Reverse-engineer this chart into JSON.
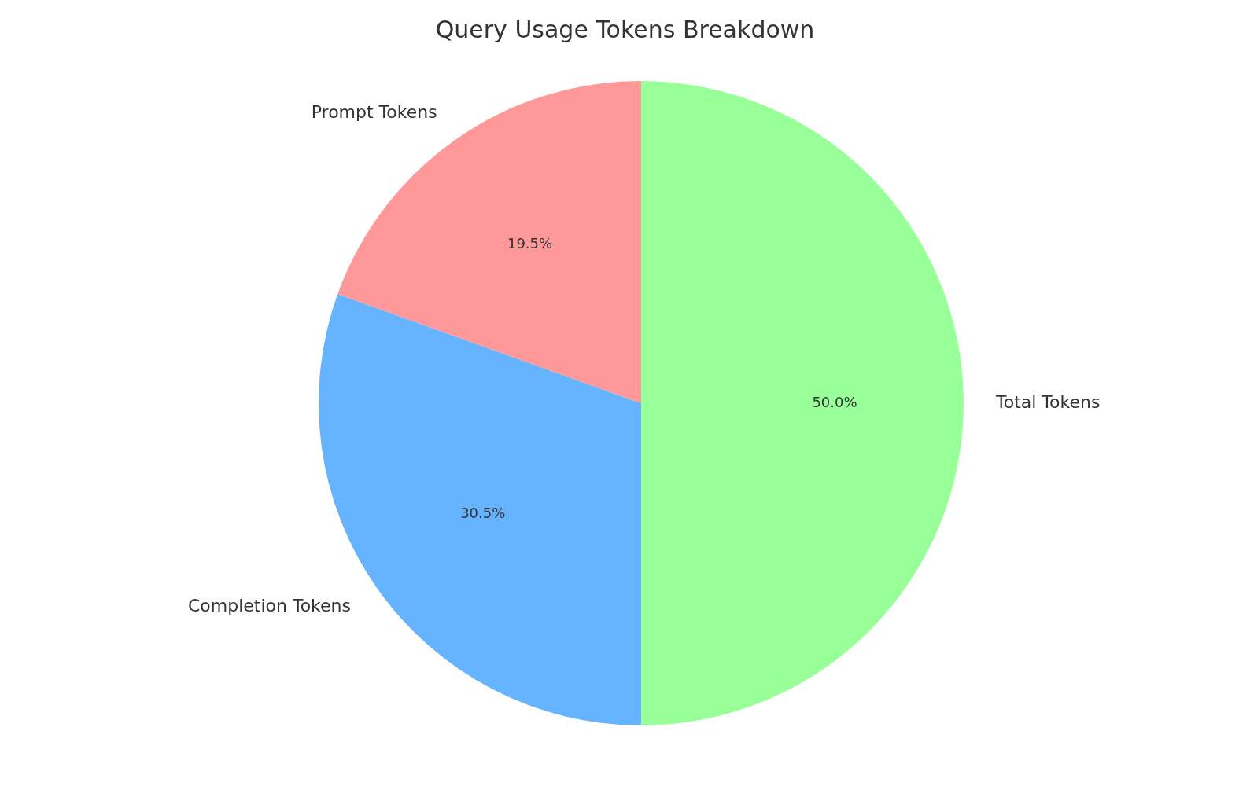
{
  "chart_data": {
    "type": "pie",
    "title": "Query Usage Tokens Breakdown",
    "categories": [
      "Prompt Tokens",
      "Completion Tokens",
      "Total Tokens"
    ],
    "values": [
      19.5,
      30.5,
      50.0
    ],
    "colors": [
      "#ff9999",
      "#66b3ff",
      "#99ff99"
    ],
    "value_labels": [
      "19.5%",
      "30.5%",
      "50.0%"
    ],
    "legend": false
  }
}
